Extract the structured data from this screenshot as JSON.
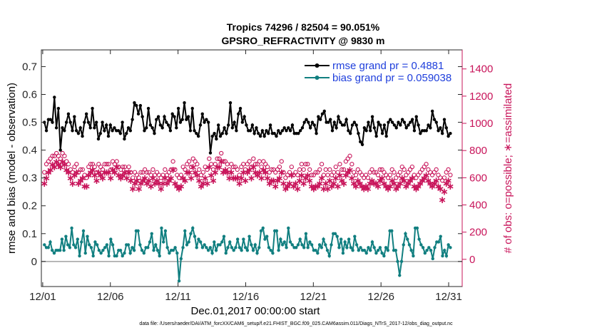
{
  "chart_data": {
    "type": "line",
    "title": "Tropics 74296 / 82504 = 90.051%",
    "subtitle": "GPSRO_REFRACTIVITY @ 9830 m",
    "xlabel": "Dec.01,2017 00:00:00 start",
    "ylabel_left": "rmse and bias (model - observation)",
    "ylabel_right": "# of obs: o=possible; ∗=assimilated",
    "footnote": "data file: /Users/raeder/DAI/ATM_forcXX/CAM6_setup/f.e21.FHIST_BGC.f09_025.CAM6assim.011/Diags_NTrS_2017-12/obs_diag_output.nc",
    "x_tick_labels": [
      "12/01",
      "12/06",
      "12/11",
      "12/16",
      "12/21",
      "12/26",
      "12/31"
    ],
    "x_tick_days": [
      0,
      5,
      10,
      15,
      20,
      25,
      30
    ],
    "xlim": [
      -0.1,
      31.0
    ],
    "ylim_left": [
      -0.09,
      0.76
    ],
    "y_ticks_left": [
      "0",
      "0.1",
      "0.2",
      "0.3",
      "0.4",
      "0.5",
      "0.6",
      "0.7"
    ],
    "ylim_right": [
      -200,
      1540
    ],
    "y_ticks_right": [
      "0",
      "200",
      "400",
      "600",
      "800",
      "1000",
      "1200",
      "1400"
    ],
    "grid": false,
    "legend_position": "top-right",
    "colors": {
      "rmse": "#000000",
      "bias": "#117f80",
      "obs": "#c8145a",
      "zero_line": "#a0a0a0"
    },
    "series": [
      {
        "name": "rmse grand pr = 0.4881",
        "axis": "left",
        "marker": "dot",
        "values": [
          0.5,
          0.47,
          0.51,
          0.51,
          0.5,
          0.59,
          0.48,
          0.55,
          0.4,
          0.48,
          0.47,
          0.5,
          0.53,
          0.5,
          0.47,
          0.52,
          0.47,
          0.46,
          0.48,
          0.45,
          0.5,
          0.53,
          0.5,
          0.48,
          0.55,
          0.48,
          0.5,
          0.44,
          0.46,
          0.5,
          0.47,
          0.49,
          0.45,
          0.49,
          0.47,
          0.48,
          0.47,
          0.47,
          0.46,
          0.5,
          0.44,
          0.46,
          0.48,
          0.47,
          0.51,
          0.57,
          0.56,
          0.53,
          0.56,
          0.52,
          0.47,
          0.48,
          0.55,
          0.49,
          0.48,
          0.46,
          0.51,
          0.52,
          0.49,
          0.48,
          0.52,
          0.5,
          0.49,
          0.47,
          0.53,
          0.52,
          0.48,
          0.55,
          0.5,
          0.51,
          0.57,
          0.51,
          0.52,
          0.47,
          0.55,
          0.47,
          0.46,
          0.45,
          0.49,
          0.53,
          0.5,
          0.51,
          0.5,
          0.39,
          0.45,
          0.46,
          0.44,
          0.49,
          0.45,
          0.46,
          0.48,
          0.46,
          0.49,
          0.57,
          0.48,
          0.5,
          0.47,
          0.53,
          0.55,
          0.5,
          0.52,
          0.49,
          0.47,
          0.47,
          0.49,
          0.46,
          0.48,
          0.46,
          0.45,
          0.47,
          0.45,
          0.47,
          0.46,
          0.49,
          0.46,
          0.46,
          0.45,
          0.47,
          0.46,
          0.47,
          0.48,
          0.47,
          0.48,
          0.47,
          0.49,
          0.46,
          0.46,
          0.46,
          0.47,
          0.48,
          0.5,
          0.51,
          0.5,
          0.48,
          0.5,
          0.49,
          0.46,
          0.52,
          0.51,
          0.53,
          0.54,
          0.5,
          0.5,
          0.51,
          0.47,
          0.5,
          0.48,
          0.52,
          0.5,
          0.49,
          0.49,
          0.51,
          0.47,
          0.46,
          0.49,
          0.5,
          0.49,
          0.46,
          0.43,
          0.42,
          0.48,
          0.47,
          0.5,
          0.47,
          0.52,
          0.48,
          0.45,
          0.5,
          0.49,
          0.46,
          0.49,
          0.45,
          0.5,
          0.51,
          0.5,
          0.49,
          0.48,
          0.5,
          0.49,
          0.51,
          0.5,
          0.48,
          0.49,
          0.5,
          0.51,
          0.47,
          0.52,
          0.49,
          0.46,
          0.47,
          0.47,
          0.47,
          0.49,
          0.48,
          0.54,
          0.51,
          0.5,
          0.47,
          0.48,
          0.46,
          0.51,
          0.48,
          0.45,
          0.46
        ]
      },
      {
        "name": "bias grand pr = 0.059038",
        "axis": "left",
        "marker": "dot",
        "values": [
          0.06,
          0.05,
          0.05,
          0.07,
          0.04,
          0.03,
          0.04,
          0.04,
          0.04,
          0.08,
          0.04,
          0.09,
          0.06,
          0.05,
          0.12,
          0.06,
          0.05,
          0.08,
          0.02,
          0.07,
          0.11,
          0.03,
          0.09,
          0.06,
          0.05,
          0.02,
          0.07,
          0.06,
          0.04,
          0.03,
          0.04,
          0.05,
          0.06,
          0.02,
          0.08,
          0.06,
          0.02,
          0.02,
          0.04,
          0.04,
          0.02,
          0.03,
          0.06,
          0.06,
          0.03,
          0.05,
          0.04,
          0.11,
          0.11,
          0.06,
          0.04,
          0.03,
          0.05,
          0.05,
          0.07,
          0.1,
          0.04,
          0.06,
          0.04,
          0.02,
          0.12,
          0.07,
          0.11,
          0.05,
          0.03,
          0.04,
          0.04,
          0.05,
          0.03,
          -0.07,
          0.01,
          0.05,
          0.11,
          0.06,
          0.07,
          0.1,
          0.12,
          0.09,
          0.05,
          0.08,
          0.07,
          0.05,
          0.06,
          0.05,
          0.04,
          0.05,
          0.03,
          0.07,
          0.04,
          0.06,
          0.06,
          0.07,
          0.09,
          0.03,
          0.05,
          0.07,
          0.05,
          0.04,
          0.05,
          0.08,
          0.05,
          0.04,
          0.08,
          0.05,
          0.04,
          0.09,
          0.06,
          0.04,
          0.06,
          0.03,
          0.05,
          0.11,
          0.12,
          0.08,
          0.09,
          0.05,
          0.04,
          0.03,
          0.11,
          0.11,
          0.04,
          0.08,
          0.06,
          0.07,
          0.05,
          0.12,
          0.07,
          0.06,
          0.05,
          0.05,
          0.06,
          0.08,
          0.06,
          0.05,
          0.1,
          0.05,
          0.07,
          0.06,
          0.04,
          0.04,
          0.03,
          0.06,
          0.05,
          0.08,
          0.06,
          0.04,
          0.02,
          0.06,
          0.1,
          0.1,
          0.09,
          0.05,
          0.08,
          0.03,
          0.07,
          0.05,
          0.08,
          0.05,
          0.04,
          0.09,
          0.06,
          0.04,
          0.05,
          0.04,
          0.04,
          0.03,
          0.05,
          0.04,
          0.07,
          0.05,
          0.03,
          0.04,
          0.05,
          0.03,
          0.02,
          0.05,
          0.04,
          0.11,
          0.11,
          0.04,
          0.04,
          0.0,
          -0.05,
          0.0,
          0.06,
          0.1,
          0.08,
          0.06,
          0.04,
          0.02,
          0.12,
          0.12,
          0.08,
          0.06,
          0.05,
          0.03,
          0.04,
          0.05,
          0.04,
          0.01,
          0.05,
          0.07,
          0.07,
          0.09,
          0.02,
          0.04,
          0.02,
          0.06,
          0.05
        ]
      },
      {
        "name": "# of obs possible",
        "axis": "right",
        "marker": "circle",
        "values": [
          640,
          700,
          720,
          740,
          760,
          760,
          780,
          760,
          740,
          780,
          760,
          720,
          700,
          660,
          640,
          680,
          700,
          640,
          660,
          660,
          620,
          600,
          680,
          700,
          700,
          680,
          640,
          700,
          680,
          660,
          700,
          700,
          700,
          660,
          720,
          700,
          720,
          680,
          660,
          680,
          680,
          640,
          680,
          640,
          600,
          640,
          620,
          600,
          640,
          640,
          660,
          640,
          640,
          620,
          660,
          620,
          640,
          620,
          600,
          620,
          660,
          620,
          640,
          660,
          720,
          660,
          620,
          600,
          620,
          680,
          660,
          700,
          720,
          680,
          740,
          720,
          700,
          660,
          620,
          640,
          680,
          660,
          740,
          700,
          660,
          700,
          740,
          740,
          780,
          720,
          720,
          700,
          660,
          700,
          680,
          680,
          660,
          620,
          680,
          700,
          660,
          700,
          720,
          680,
          740,
          700,
          700,
          720,
          680,
          720,
          700,
          680,
          640,
          660,
          660,
          640,
          660,
          680,
          720,
          640,
          600,
          620,
          640,
          680,
          620,
          640,
          620,
          660,
          700,
          660,
          700,
          700,
          660,
          620,
          620,
          640,
          640,
          660,
          700,
          620,
          660,
          620,
          660,
          620,
          640,
          680,
          640,
          700,
          660,
          660,
          720,
          740,
          760,
          700,
          640,
          620,
          660,
          640,
          620,
          600,
          620,
          600,
          640,
          660,
          640,
          640,
          620,
          660,
          660,
          640,
          620,
          600,
          620,
          660,
          640,
          600,
          620,
          640,
          680,
          660,
          620,
          640,
          660,
          680,
          620,
          600,
          620,
          640,
          660,
          680,
          700,
          660,
          640,
          620,
          640,
          660,
          620,
          600,
          580,
          600,
          640,
          660,
          620
        ]
      },
      {
        "name": "# of obs assimilated",
        "axis": "right",
        "marker": "asterisk",
        "values": [
          560,
          600,
          640,
          660,
          700,
          680,
          720,
          700,
          680,
          720,
          700,
          660,
          640,
          600,
          560,
          620,
          640,
          560,
          580,
          600,
          540,
          540,
          620,
          640,
          660,
          620,
          580,
          640,
          620,
          600,
          640,
          640,
          640,
          600,
          660,
          640,
          680,
          620,
          600,
          620,
          640,
          600,
          640,
          580,
          520,
          560,
          580,
          520,
          560,
          580,
          600,
          560,
          580,
          540,
          600,
          560,
          580,
          560,
          520,
          560,
          600,
          560,
          580,
          600,
          660,
          560,
          540,
          520,
          540,
          600,
          580,
          640,
          640,
          600,
          680,
          640,
          620,
          580,
          540,
          560,
          600,
          560,
          680,
          620,
          580,
          640,
          680,
          680,
          720,
          640,
          660,
          640,
          600,
          640,
          600,
          600,
          600,
          560,
          600,
          640,
          580,
          640,
          660,
          600,
          680,
          640,
          620,
          640,
          600,
          660,
          640,
          600,
          560,
          580,
          580,
          540,
          580,
          600,
          640,
          560,
          520,
          540,
          560,
          620,
          540,
          560,
          520,
          580,
          620,
          560,
          600,
          620,
          580,
          540,
          520,
          540,
          540,
          560,
          600,
          520,
          560,
          520,
          580,
          540,
          560,
          600,
          540,
          620,
          580,
          560,
          620,
          640,
          660,
          600,
          560,
          540,
          580,
          560,
          540,
          520,
          540,
          520,
          560,
          580,
          560,
          560,
          540,
          580,
          600,
          560,
          540,
          520,
          540,
          580,
          560,
          520,
          540,
          560,
          600,
          580,
          540,
          560,
          580,
          600,
          540,
          520,
          540,
          560,
          580,
          600,
          620,
          580,
          560,
          540,
          560,
          580,
          540,
          520,
          440,
          500,
          560,
          580,
          540
        ]
      }
    ],
    "annotations": []
  }
}
